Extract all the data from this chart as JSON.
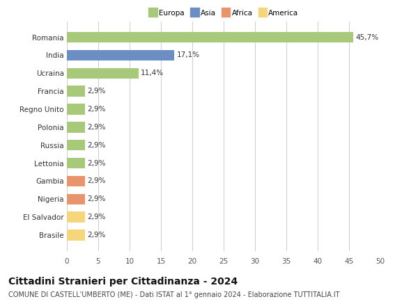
{
  "countries": [
    "Brasile",
    "El Salvador",
    "Nigeria",
    "Gambia",
    "Lettonia",
    "Russia",
    "Polonia",
    "Regno Unito",
    "Francia",
    "Ucraina",
    "India",
    "Romania"
  ],
  "values": [
    2.9,
    2.9,
    2.9,
    2.9,
    2.9,
    2.9,
    2.9,
    2.9,
    2.9,
    11.4,
    17.1,
    45.7
  ],
  "labels": [
    "2,9%",
    "2,9%",
    "2,9%",
    "2,9%",
    "2,9%",
    "2,9%",
    "2,9%",
    "2,9%",
    "2,9%",
    "11,4%",
    "17,1%",
    "45,7%"
  ],
  "colors": [
    "#f5d67a",
    "#f5d67a",
    "#e8956d",
    "#e8956d",
    "#a8c97a",
    "#a8c97a",
    "#a8c97a",
    "#a8c97a",
    "#a8c97a",
    "#a8c97a",
    "#6b8fc2",
    "#a8c97a"
  ],
  "legend_labels": [
    "Europa",
    "Asia",
    "Africa",
    "America"
  ],
  "legend_colors": [
    "#a8c97a",
    "#6b8fc2",
    "#e8956d",
    "#f5d67a"
  ],
  "xlim": [
    0,
    50
  ],
  "xticks": [
    0,
    5,
    10,
    15,
    20,
    25,
    30,
    35,
    40,
    45,
    50
  ],
  "title": "Cittadini Stranieri per Cittadinanza - 2024",
  "subtitle": "COMUNE DI CASTELL'UMBERTO (ME) - Dati ISTAT al 1° gennaio 2024 - Elaborazione TUTTITALIA.IT",
  "background_color": "#ffffff",
  "grid_color": "#d0d0d0",
  "bar_height": 0.6,
  "label_fontsize": 7.5,
  "tick_fontsize": 7.5,
  "title_fontsize": 10,
  "subtitle_fontsize": 7
}
